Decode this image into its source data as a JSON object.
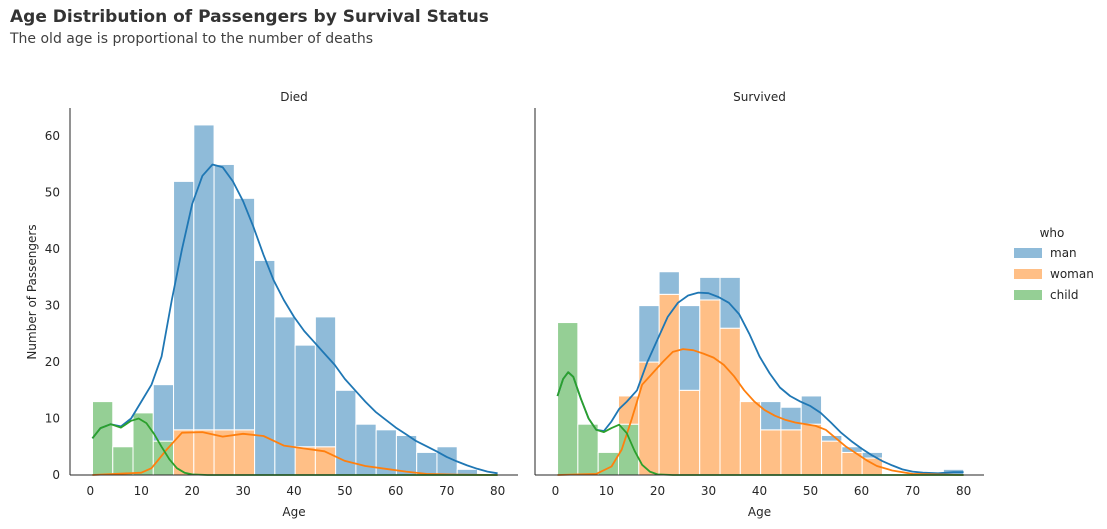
{
  "title": "Age Distribution of Passengers by Survival Status",
  "subtitle": "The old age is proportional to the number of deaths",
  "chart_data": {
    "type": "histogram",
    "multiple": "stack",
    "kde": true,
    "xlabel": "Age",
    "ylabel": "Number of Passengers",
    "xlim": [
      -4,
      84
    ],
    "ylim": [
      0,
      65
    ],
    "xticks": [
      0,
      10,
      20,
      30,
      40,
      50,
      60,
      70,
      80
    ],
    "yticks": [
      0,
      10,
      20,
      30,
      40,
      50,
      60
    ],
    "bin_edges": [
      0.42,
      4.4,
      8.38,
      12.36,
      16.34,
      20.32,
      24.3,
      28.28,
      32.26,
      36.24,
      40.22,
      44.2,
      48.18,
      52.16,
      56.14,
      60.12,
      64.1,
      68.08,
      72.06,
      76.04,
      80.02
    ],
    "grid": false,
    "legend": {
      "title": "who",
      "placement": "right",
      "entries": [
        {
          "label": "man",
          "color": "#1f77b4"
        },
        {
          "label": "woman",
          "color": "#ff7f0e"
        },
        {
          "label": "child",
          "color": "#2ca02c"
        }
      ]
    },
    "facets": [
      {
        "title": "Died",
        "series": [
          {
            "name": "child",
            "color": "#2ca02c",
            "counts": [
              13,
              5,
              11,
              6,
              0,
              0,
              0,
              0,
              0,
              0,
              0,
              0,
              0,
              0,
              0,
              0,
              0,
              0,
              0,
              0
            ],
            "kde": [
              [
                0.4,
                6.5
              ],
              [
                2,
                8.3
              ],
              [
                4,
                9
              ],
              [
                6,
                8.4
              ],
              [
                8,
                9.6
              ],
              [
                9.5,
                10
              ],
              [
                11,
                9.2
              ],
              [
                12.5,
                7.3
              ],
              [
                14,
                5
              ],
              [
                15.5,
                2.8
              ],
              [
                17,
                1.2
              ],
              [
                18.5,
                0.4
              ],
              [
                20,
                0.1
              ],
              [
                23,
                0
              ],
              [
                80,
                0
              ]
            ]
          },
          {
            "name": "woman",
            "color": "#ff7f0e",
            "counts": [
              0,
              0,
              0,
              0,
              8,
              8,
              8,
              8,
              0,
              0,
              5,
              5,
              0,
              0,
              0,
              0,
              0,
              0,
              0,
              0
            ],
            "kde": [
              [
                0.4,
                0
              ],
              [
                10,
                0.4
              ],
              [
                12,
                1.2
              ],
              [
                15,
                4.5
              ],
              [
                18,
                7.5
              ],
              [
                22,
                7.6
              ],
              [
                26,
                6.8
              ],
              [
                30,
                7.3
              ],
              [
                34,
                6.9
              ],
              [
                38,
                5.2
              ],
              [
                42,
                4.7
              ],
              [
                46,
                4.2
              ],
              [
                50,
                2.5
              ],
              [
                54,
                1.6
              ],
              [
                58,
                1.1
              ],
              [
                62,
                0.6
              ],
              [
                66,
                0.2
              ],
              [
                72,
                0.05
              ],
              [
                80,
                0
              ]
            ]
          },
          {
            "name": "man",
            "color": "#1f77b4",
            "counts": [
              0,
              0,
              0,
              10,
              44,
              54,
              47,
              41,
              38,
              28,
              18,
              23,
              15,
              9,
              8,
              7,
              4,
              5,
              1,
              0
            ],
            "kde": [
              [
                0.4,
                6.5
              ],
              [
                2,
                8.3
              ],
              [
                4,
                9
              ],
              [
                6,
                8.6
              ],
              [
                8,
                10
              ],
              [
                10,
                13
              ],
              [
                12,
                16
              ],
              [
                14,
                21
              ],
              [
                16,
                31
              ],
              [
                18,
                40
              ],
              [
                20,
                48
              ],
              [
                22,
                53
              ],
              [
                24,
                55
              ],
              [
                26,
                54.5
              ],
              [
                28,
                52
              ],
              [
                30,
                48.5
              ],
              [
                32,
                44
              ],
              [
                34,
                39
              ],
              [
                36,
                34.5
              ],
              [
                38,
                31
              ],
              [
                40,
                28
              ],
              [
                42,
                25.5
              ],
              [
                44,
                23.5
              ],
              [
                46,
                21.5
              ],
              [
                48,
                19.5
              ],
              [
                50,
                17
              ],
              [
                52,
                15
              ],
              [
                54,
                13
              ],
              [
                56,
                11.2
              ],
              [
                58,
                9.8
              ],
              [
                60,
                8.4
              ],
              [
                62,
                7.2
              ],
              [
                64,
                6
              ],
              [
                66,
                5.1
              ],
              [
                68,
                4.2
              ],
              [
                70,
                3.2
              ],
              [
                72,
                2.4
              ],
              [
                74,
                1.7
              ],
              [
                76,
                1.1
              ],
              [
                78,
                0.6
              ],
              [
                80,
                0.3
              ]
            ]
          }
        ]
      },
      {
        "title": "Survived",
        "series": [
          {
            "name": "child",
            "color": "#2ca02c",
            "counts": [
              27,
              9,
              4,
              9,
              0,
              0,
              0,
              0,
              0,
              0,
              0,
              0,
              0,
              0,
              0,
              0,
              0,
              0,
              0,
              0
            ],
            "kde": [
              [
                0.4,
                14
              ],
              [
                1.5,
                17
              ],
              [
                2.5,
                18.2
              ],
              [
                3.5,
                17.4
              ],
              [
                5,
                13.5
              ],
              [
                6.5,
                10
              ],
              [
                8,
                8
              ],
              [
                9.5,
                7.6
              ],
              [
                11,
                8.3
              ],
              [
                12.5,
                8.9
              ],
              [
                14,
                7.4
              ],
              [
                15.5,
                4.3
              ],
              [
                17,
                1.8
              ],
              [
                18.5,
                0.6
              ],
              [
                20,
                0.1
              ],
              [
                23,
                0
              ],
              [
                80,
                0
              ]
            ]
          },
          {
            "name": "woman",
            "color": "#ff7f0e",
            "counts": [
              0,
              0,
              0,
              5,
              20,
              32,
              15,
              31,
              26,
              13,
              8,
              8,
              9,
              6,
              4,
              3,
              0,
              0,
              0,
              0
            ],
            "kde": [
              [
                0.4,
                0
              ],
              [
                8,
                0.2
              ],
              [
                11,
                1.5
              ],
              [
                13,
                4.5
              ],
              [
                15,
                10
              ],
              [
                17,
                16
              ],
              [
                19,
                18
              ],
              [
                21,
                20
              ],
              [
                23,
                21.8
              ],
              [
                25,
                22.3
              ],
              [
                27,
                22.1
              ],
              [
                29,
                21.5
              ],
              [
                31,
                20.8
              ],
              [
                33,
                19.5
              ],
              [
                35,
                17.5
              ],
              [
                37,
                15
              ],
              [
                39,
                13
              ],
              [
                41,
                11.5
              ],
              [
                43,
                10.5
              ],
              [
                45,
                9.8
              ],
              [
                47,
                9.3
              ],
              [
                49,
                9
              ],
              [
                51,
                8.7
              ],
              [
                53,
                8
              ],
              [
                55,
                6.5
              ],
              [
                57,
                5
              ],
              [
                59,
                3.8
              ],
              [
                61,
                2.6
              ],
              [
                63,
                1.6
              ],
              [
                66,
                0.8
              ],
              [
                70,
                0.2
              ],
              [
                80,
                0
              ]
            ]
          },
          {
            "name": "man",
            "color": "#1f77b4",
            "counts": [
              0,
              0,
              0,
              0,
              10,
              4,
              15,
              4,
              9,
              0,
              5,
              4,
              5,
              1,
              1,
              1,
              0,
              0,
              0,
              1
            ],
            "kde": [
              [
                0.4,
                14
              ],
              [
                1.5,
                17
              ],
              [
                2.5,
                18.2
              ],
              [
                3.5,
                17.4
              ],
              [
                5,
                13.5
              ],
              [
                6.5,
                10
              ],
              [
                8,
                8
              ],
              [
                9.5,
                7.8
              ],
              [
                11,
                9.5
              ],
              [
                12.5,
                11.7
              ],
              [
                14,
                13
              ],
              [
                16,
                15
              ],
              [
                18,
                20
              ],
              [
                20,
                24
              ],
              [
                22,
                28
              ],
              [
                24,
                30.5
              ],
              [
                26,
                31.8
              ],
              [
                28,
                32.3
              ],
              [
                30,
                32.2
              ],
              [
                32,
                31.5
              ],
              [
                34,
                30.5
              ],
              [
                36,
                28.5
              ],
              [
                38,
                25
              ],
              [
                40,
                21
              ],
              [
                42,
                18
              ],
              [
                44,
                15.5
              ],
              [
                46,
                14
              ],
              [
                48,
                13
              ],
              [
                50,
                12.2
              ],
              [
                52,
                11
              ],
              [
                54,
                9.3
              ],
              [
                56,
                7.5
              ],
              [
                58,
                6
              ],
              [
                60,
                4.7
              ],
              [
                62,
                3.5
              ],
              [
                64,
                2.5
              ],
              [
                66,
                1.7
              ],
              [
                68,
                1
              ],
              [
                70,
                0.6
              ],
              [
                72,
                0.4
              ],
              [
                75,
                0.3
              ],
              [
                78,
                0.5
              ],
              [
                80,
                0.5
              ]
            ]
          }
        ]
      }
    ]
  }
}
